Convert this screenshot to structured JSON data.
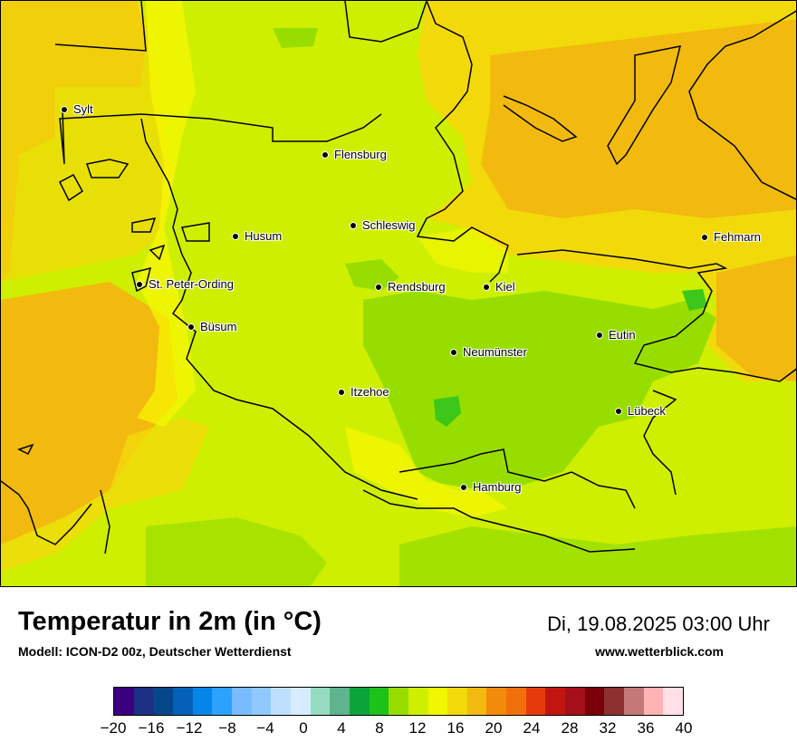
{
  "map": {
    "cities": [
      {
        "name": "Sylt"
      },
      {
        "name": "Flensburg"
      },
      {
        "name": "Schleswig"
      },
      {
        "name": "Husum"
      },
      {
        "name": "Fehmarn"
      },
      {
        "name": "St. Peter-Ording"
      },
      {
        "name": "Rendsburg"
      },
      {
        "name": "Kiel"
      },
      {
        "name": "Büsum"
      },
      {
        "name": "Neumünster"
      },
      {
        "name": "Eutin"
      },
      {
        "name": "Itzehoe"
      },
      {
        "name": "Lübeck"
      },
      {
        "name": "Hamburg"
      }
    ],
    "colors": {
      "land_main": "#cfef00",
      "land_warm": "#f2d90a",
      "sea_warm": "#f2b90f",
      "yellow": "#f9f900",
      "green": "#97de00",
      "dark_green": "#3cc71a"
    }
  },
  "footer": {
    "title": "Temperatur in 2m (in °C)",
    "model": "Modell: ICON-D2 00z, Deutscher Wetterdienst",
    "datetime": "Di, 19.08.2025 03:00 Uhr",
    "website": "www.wetterblick.com"
  },
  "legend": {
    "ticks": [
      "−20",
      "−16",
      "−12",
      "−8",
      "−4",
      "0",
      "4",
      "8",
      "12",
      "16",
      "20",
      "24",
      "28",
      "32",
      "36",
      "40"
    ],
    "colors": [
      "#3b0080",
      "#1c2f83",
      "#05478a",
      "#0561b7",
      "#0585ea",
      "#2ca2ff",
      "#78bcff",
      "#8fc9ff",
      "#bfdfff",
      "#d8ecff",
      "#95dcc0",
      "#5fb38e",
      "#0aa43a",
      "#1cc21a",
      "#97de00",
      "#cfef00",
      "#f0f700",
      "#f2d90a",
      "#f2b90f",
      "#f28a0c",
      "#f2700c",
      "#e63a0c",
      "#c0160f",
      "#a6101a",
      "#7a000a",
      "#8c3030",
      "#c47878",
      "#ffb3b3",
      "#ffe0e6"
    ]
  }
}
